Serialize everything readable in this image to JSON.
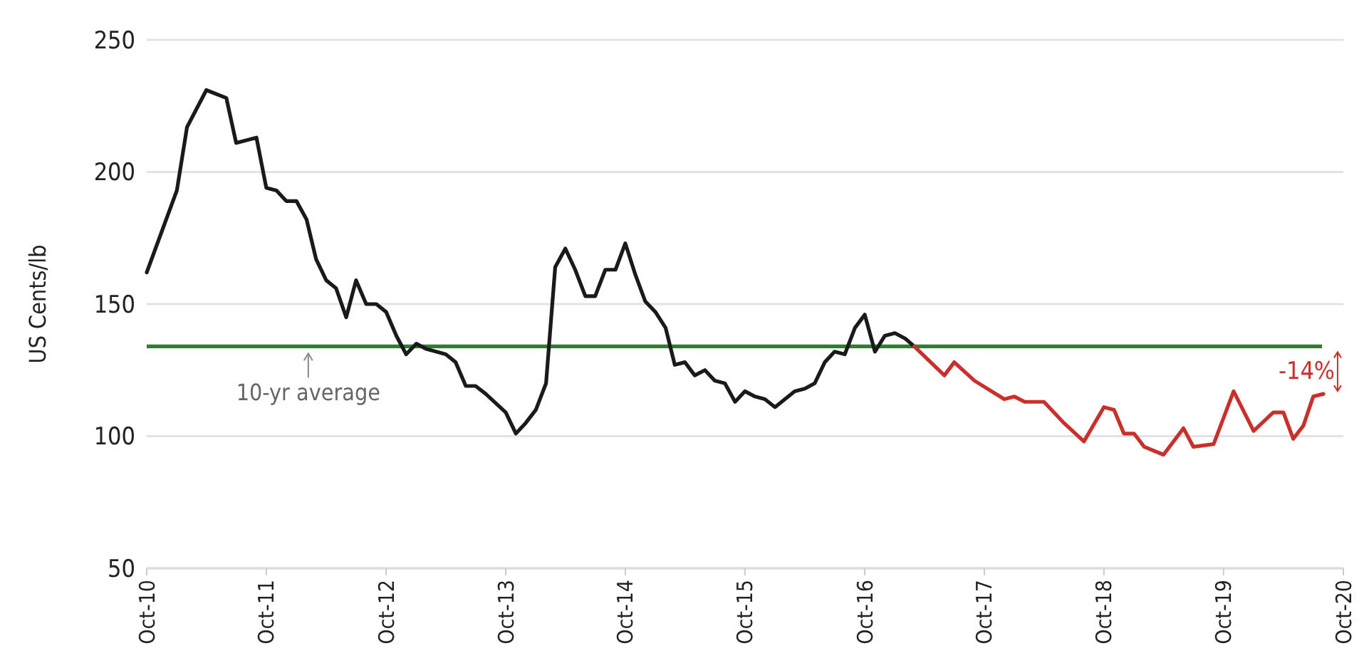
{
  "chart_data": {
    "type": "line",
    "ylabel": "US Cents/lb",
    "x": [
      "2010-10",
      "2011-01",
      "2011-02",
      "2011-04",
      "2011-06",
      "2011-07",
      "2011-09",
      "2011-10",
      "2011-11",
      "2011-12",
      "2012-01",
      "2012-02",
      "2012-03",
      "2012-04",
      "2012-05",
      "2012-06",
      "2012-07",
      "2012-08",
      "2012-09",
      "2012-10",
      "2012-11",
      "2012-12",
      "2013-01",
      "2013-02",
      "2013-04",
      "2013-05",
      "2013-06",
      "2013-07",
      "2013-08",
      "2013-10",
      "2013-11",
      "2013-12",
      "2014-01",
      "2014-02",
      "2014-03",
      "2014-04",
      "2014-05",
      "2014-06",
      "2014-07",
      "2014-08",
      "2014-09",
      "2014-10",
      "2014-11",
      "2014-12",
      "2015-01",
      "2015-02",
      "2015-03",
      "2015-04",
      "2015-05",
      "2015-06",
      "2015-07",
      "2015-08",
      "2015-09",
      "2015-10",
      "2015-11",
      "2015-12",
      "2016-01",
      "2016-03",
      "2016-04",
      "2016-05",
      "2016-06",
      "2016-07",
      "2016-08",
      "2016-09",
      "2016-10",
      "2016-11",
      "2016-12",
      "2017-01",
      "2017-02",
      "2017-03"
    ],
    "series": [
      {
        "color": "#1a1a1a",
        "values": [
          162,
          193,
          217,
          231,
          228,
          211,
          213,
          194,
          193,
          189,
          189,
          182,
          167,
          159,
          156,
          145,
          159,
          150,
          150,
          147,
          138,
          131,
          135,
          133,
          131,
          128,
          119,
          119,
          116,
          109,
          101,
          105,
          110,
          120,
          164,
          171,
          163,
          153,
          153,
          163,
          163,
          173,
          161,
          151,
          147,
          141,
          127,
          128,
          123,
          125,
          121,
          120,
          113,
          117,
          115,
          114,
          111,
          117,
          118,
          120,
          128,
          132,
          131,
          141,
          146,
          132,
          138,
          139,
          137,
          134
        ]
      },
      {
        "color": "#c9302c",
        "x": [
          "2017-03",
          "2017-06",
          "2017-07",
          "2017-09",
          "2017-12",
          "2018-01",
          "2018-02",
          "2018-04",
          "2018-06",
          "2018-08",
          "2018-10",
          "2018-11",
          "2018-12",
          "2019-01",
          "2019-02",
          "2019-04",
          "2019-06",
          "2019-07",
          "2019-09",
          "2019-11",
          "2020-01",
          "2020-03",
          "2020-04",
          "2020-05",
          "2020-06",
          "2020-07",
          "2020-08"
        ],
        "values": [
          134,
          123,
          128,
          121,
          114,
          115,
          113,
          113,
          105,
          98,
          111,
          110,
          101,
          101,
          96,
          93,
          103,
          96,
          97,
          117,
          102,
          109,
          109,
          99,
          104,
          115,
          116
        ]
      }
    ],
    "xlim": [
      "2010-10",
      "2020-10"
    ],
    "xticks": [
      {
        "value": "2010-10",
        "label": "Oct-10"
      },
      {
        "value": "2011-10",
        "label": "Oct-11"
      },
      {
        "value": "2012-10",
        "label": "Oct-12"
      },
      {
        "value": "2013-10",
        "label": "Oct-13"
      },
      {
        "value": "2014-10",
        "label": "Oct-14"
      },
      {
        "value": "2015-10",
        "label": "Oct-15"
      },
      {
        "value": "2016-10",
        "label": "Oct-16"
      },
      {
        "value": "2017-10",
        "label": "Oct-17"
      },
      {
        "value": "2018-10",
        "label": "Oct-18"
      },
      {
        "value": "2019-10",
        "label": "Oct-19"
      },
      {
        "value": "2020-10",
        "label": "Oct-20"
      }
    ],
    "ylim": [
      50,
      250
    ],
    "yticks": [
      50,
      100,
      150,
      200,
      250
    ],
    "grid": "y",
    "ref_lines": [
      {
        "axis": "y",
        "value": 134,
        "label": "10-yr average",
        "color": "#2e7d32"
      }
    ],
    "annotations": [
      "-14%"
    ]
  }
}
